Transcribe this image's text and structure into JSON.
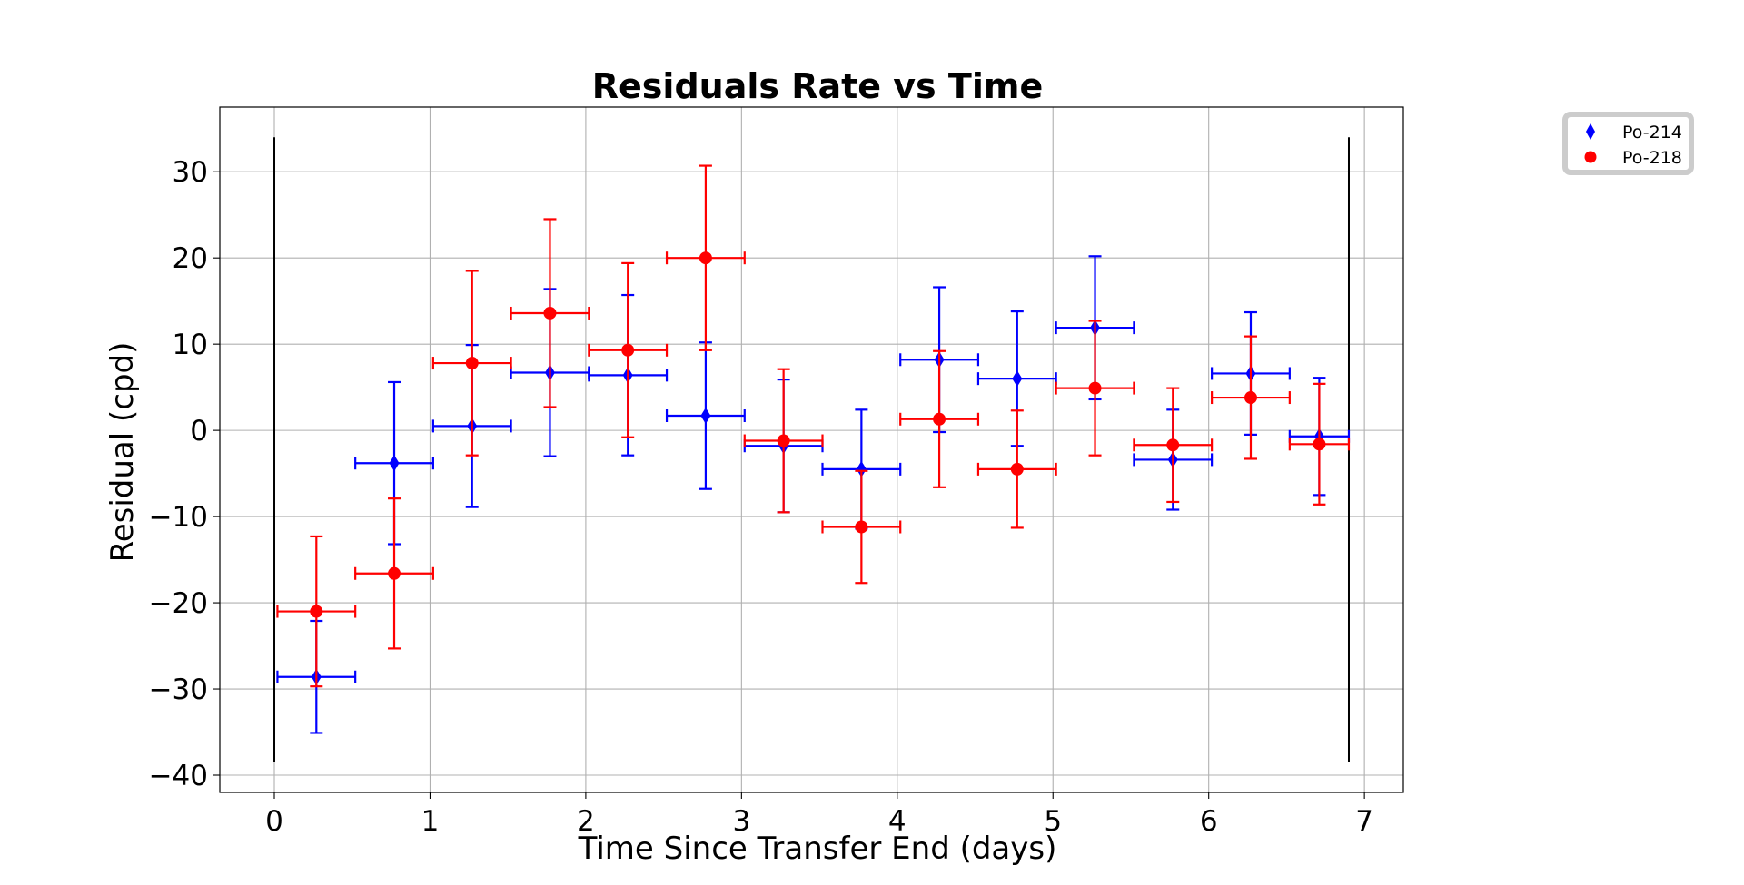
{
  "chart_data": {
    "type": "scatter",
    "title": "Residuals Rate vs Time",
    "xlabel": "Time Since Transfer End (days)",
    "ylabel": "Residual (cpd)",
    "xlim": [
      -0.35,
      7.25
    ],
    "ylim": [
      -42,
      37.5
    ],
    "xticks": [
      0,
      1,
      2,
      3,
      4,
      5,
      6,
      7
    ],
    "yticks": [
      -40,
      -30,
      -20,
      -10,
      0,
      10,
      20,
      30
    ],
    "ytick_labels": [
      "−40",
      "−30",
      "−20",
      "−10",
      "0",
      "10",
      "20",
      "30"
    ],
    "grid": true,
    "legend_position": "outside top-right",
    "vertical_lines": [
      {
        "x": 0.0,
        "y_range": [
          -38.5,
          34.0
        ]
      },
      {
        "x": 6.9,
        "y_range": [
          -38.5,
          34.0
        ]
      }
    ],
    "series": [
      {
        "name": "Po-214",
        "color": "#0000ff",
        "marker": "diamond",
        "points": [
          {
            "x": 0.27,
            "y": -28.6,
            "xerr": 0.25,
            "yerr": 6.5
          },
          {
            "x": 0.77,
            "y": -3.8,
            "xerr": 0.25,
            "yerr": 9.4
          },
          {
            "x": 1.27,
            "y": 0.5,
            "xerr": 0.25,
            "yerr": 9.4
          },
          {
            "x": 1.77,
            "y": 6.7,
            "xerr": 0.25,
            "yerr": 9.7
          },
          {
            "x": 2.27,
            "y": 6.4,
            "xerr": 0.25,
            "yerr": 9.3
          },
          {
            "x": 2.77,
            "y": 1.7,
            "xerr": 0.25,
            "yerr": 8.5
          },
          {
            "x": 3.27,
            "y": -1.8,
            "xerr": 0.25,
            "yerr": 7.7
          },
          {
            "x": 3.77,
            "y": -4.5,
            "xerr": 0.25,
            "yerr": 6.9
          },
          {
            "x": 4.27,
            "y": 8.2,
            "xerr": 0.25,
            "yerr": 8.4
          },
          {
            "x": 4.77,
            "y": 6.0,
            "xerr": 0.25,
            "yerr": 7.8
          },
          {
            "x": 5.27,
            "y": 11.9,
            "xerr": 0.25,
            "yerr": 8.3
          },
          {
            "x": 5.77,
            "y": -3.4,
            "xerr": 0.25,
            "yerr": 5.8
          },
          {
            "x": 6.27,
            "y": 6.6,
            "xerr": 0.25,
            "yerr": 7.1
          },
          {
            "x": 6.71,
            "y": -0.7,
            "xerr": 0.19,
            "yerr": 6.8
          }
        ]
      },
      {
        "name": "Po-218",
        "color": "#ff0000",
        "marker": "circle",
        "points": [
          {
            "x": 0.27,
            "y": -21.0,
            "xerr": 0.25,
            "yerr": 8.7
          },
          {
            "x": 0.77,
            "y": -16.6,
            "xerr": 0.25,
            "yerr": 8.7
          },
          {
            "x": 1.27,
            "y": 7.8,
            "xerr": 0.25,
            "yerr": 10.7
          },
          {
            "x": 1.77,
            "y": 13.6,
            "xerr": 0.25,
            "yerr": 10.9
          },
          {
            "x": 2.27,
            "y": 9.3,
            "xerr": 0.25,
            "yerr": 10.1
          },
          {
            "x": 2.77,
            "y": 20.0,
            "xerr": 0.25,
            "yerr": 10.7
          },
          {
            "x": 3.27,
            "y": -1.2,
            "xerr": 0.25,
            "yerr": 8.3
          },
          {
            "x": 3.77,
            "y": -11.2,
            "xerr": 0.25,
            "yerr": 6.5
          },
          {
            "x": 4.27,
            "y": 1.3,
            "xerr": 0.25,
            "yerr": 7.9
          },
          {
            "x": 4.77,
            "y": -4.5,
            "xerr": 0.25,
            "yerr": 6.8
          },
          {
            "x": 5.27,
            "y": 4.9,
            "xerr": 0.25,
            "yerr": 7.8
          },
          {
            "x": 5.77,
            "y": -1.7,
            "xerr": 0.25,
            "yerr": 6.6
          },
          {
            "x": 6.27,
            "y": 3.8,
            "xerr": 0.25,
            "yerr": 7.1
          },
          {
            "x": 6.71,
            "y": -1.6,
            "xerr": 0.19,
            "yerr": 7.0
          }
        ]
      }
    ]
  }
}
